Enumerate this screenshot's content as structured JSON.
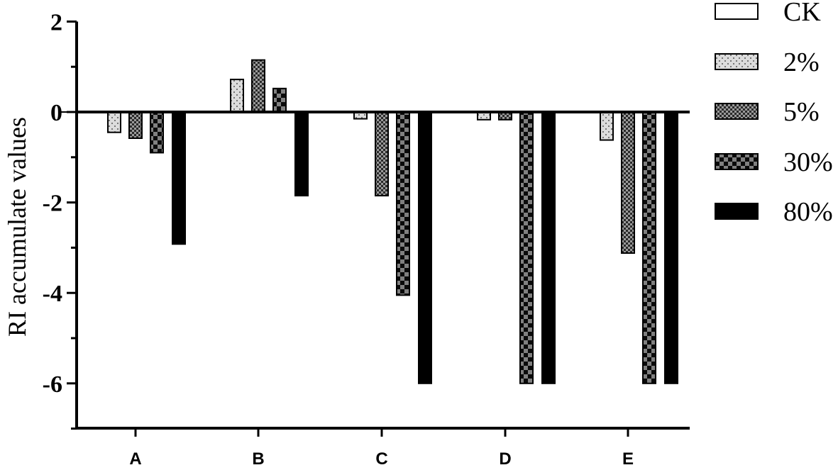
{
  "chart_data": {
    "type": "bar",
    "title": "",
    "xlabel": "",
    "ylabel": "RI accumulate values",
    "ylim": [
      -7,
      2
    ],
    "yticks": [
      2,
      0,
      -2,
      -4,
      -6
    ],
    "ytick_labels": [
      "2",
      "0",
      "-2",
      "-4",
      "-6"
    ],
    "grid": false,
    "legend_position": "top-right",
    "categories": [
      "A",
      "B",
      "C",
      "D",
      "E"
    ],
    "series": [
      {
        "name": "CK",
        "pattern": "white",
        "values": [
          0,
          0,
          0,
          0,
          0
        ]
      },
      {
        "name": "2%",
        "pattern": "light-dotted",
        "values": [
          -0.45,
          0.72,
          -0.15,
          -0.17,
          -0.62
        ]
      },
      {
        "name": "5%",
        "pattern": "fine-checker",
        "values": [
          -0.58,
          1.15,
          -1.85,
          -0.17,
          -3.12
        ]
      },
      {
        "name": "30%",
        "pattern": "checker",
        "values": [
          -0.9,
          0.52,
          -4.05,
          -6.0,
          -6.0
        ]
      },
      {
        "name": "80%",
        "pattern": "solid-black",
        "values": [
          -2.92,
          -1.85,
          -6.0,
          -6.0,
          -6.0
        ]
      }
    ]
  }
}
